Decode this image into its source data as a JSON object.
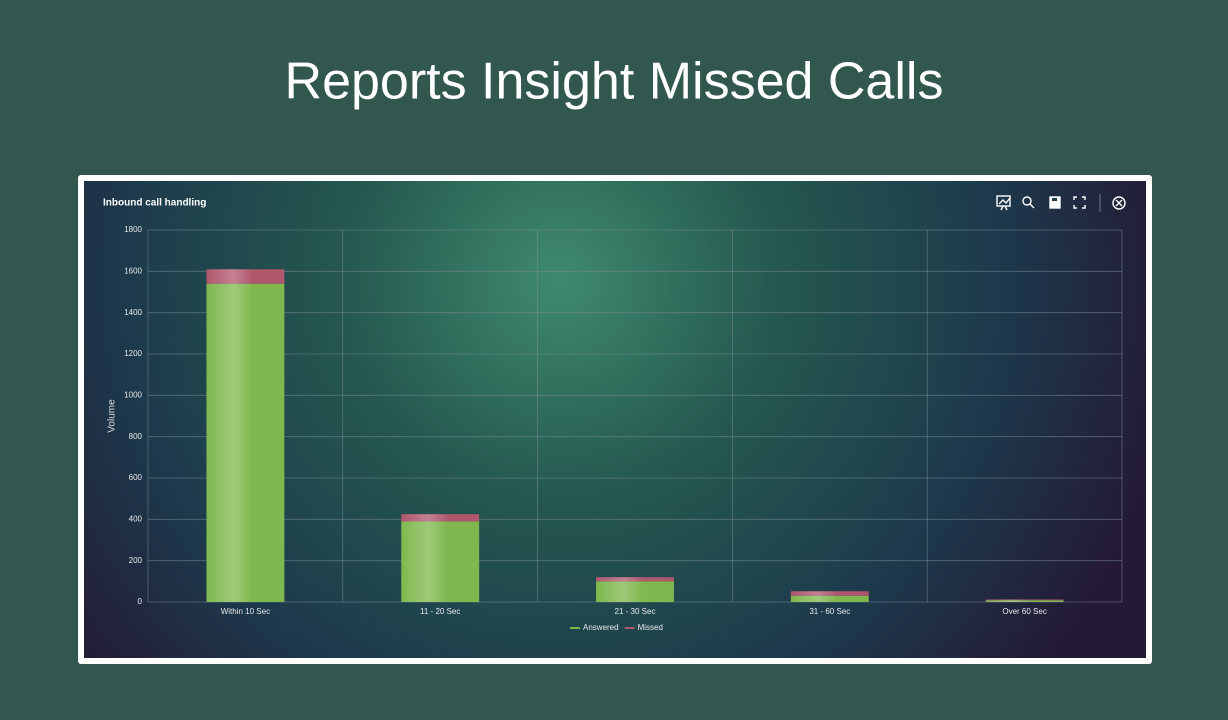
{
  "page_title": "Reports Insight Missed Calls",
  "chart_data": {
    "type": "stacked-bar",
    "title": "Inbound call handling",
    "y_label": "Volume",
    "categories": [
      "Within 10 Sec",
      "11 - 20 Sec",
      "21 - 30 Sec",
      "31 - 60 Sec",
      "Over 60 Sec"
    ],
    "series": [
      {
        "name": "Answered",
        "color": "#7fb84e",
        "values": [
          1540,
          390,
          100,
          30,
          8
        ]
      },
      {
        "name": "Missed",
        "color": "#b0576e",
        "values": [
          70,
          35,
          20,
          22,
          4
        ]
      }
    ],
    "ylim": [
      0,
      1800
    ],
    "yticks": [
      0,
      200,
      400,
      600,
      800,
      1000,
      1200,
      1400,
      1600,
      1800
    ],
    "grid": true,
    "legend": "bottom"
  }
}
